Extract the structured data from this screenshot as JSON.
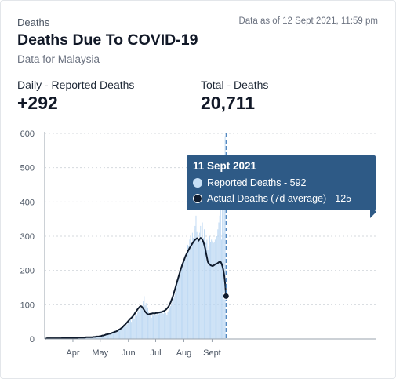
{
  "header": {
    "category": "Deaths",
    "as_of": "Data as of 12 Sept 2021, 11:59 pm",
    "title": "Deaths Due To COVID-19",
    "subtitle": "Data for Malaysia"
  },
  "stats": {
    "daily_label": "Daily - Reported Deaths",
    "daily_value": "+292",
    "total_label": "Total - Deaths",
    "total_value": "20,711"
  },
  "tooltip": {
    "date": "11 Sept 2021",
    "reported": "Reported Deaths - 592",
    "actual": "Actual Deaths (7d average) - 125"
  },
  "colors": {
    "bar": "#b9d6f2",
    "line": "#0f1b2d",
    "marker_line": "#4a82bd",
    "tooltip_bg": "#2e5a86",
    "reported_dot": "#c7dff5",
    "actual_dot": "#0f1b2d"
  },
  "chart_data": {
    "type": "bar",
    "y_ticks": [
      "0",
      "100",
      "200",
      "300",
      "400",
      "500",
      "600"
    ],
    "x_tick_labels": [
      "Apr",
      "May",
      "Jun",
      "Jul",
      "Aug",
      "Sept"
    ],
    "ylim": [
      0,
      600
    ],
    "grid": true,
    "start_date": "2021-03-01",
    "series": [
      {
        "name": "Reported Deaths",
        "type": "bar",
        "values": [
          2,
          1,
          2,
          3,
          1,
          2,
          4,
          2,
          1,
          3,
          2,
          1,
          2,
          3,
          1,
          2,
          3,
          2,
          1,
          4,
          2,
          3,
          1,
          2,
          3,
          2,
          1,
          3,
          2,
          4,
          3,
          2,
          3,
          4,
          2,
          3,
          5,
          3,
          2,
          4,
          3,
          5,
          4,
          3,
          6,
          5,
          4,
          3,
          5,
          4,
          6,
          5,
          4,
          6,
          7,
          5,
          6,
          8,
          7,
          6,
          9,
          8,
          10,
          9,
          12,
          11,
          10,
          14,
          13,
          12,
          16,
          15,
          14,
          18,
          20,
          17,
          22,
          24,
          20,
          26,
          25,
          28,
          30,
          27,
          32,
          35,
          33,
          38,
          40,
          36,
          42,
          48,
          45,
          52,
          55,
          50,
          60,
          65,
          58,
          70,
          75,
          68,
          80,
          85,
          78,
          90,
          95,
          88,
          110,
          125,
          98,
          105,
          88,
          92,
          80,
          75,
          70,
          62,
          72,
          68,
          78,
          74,
          70,
          76,
          80,
          72,
          78,
          82,
          75,
          80,
          74,
          78,
          82,
          76,
          70,
          78,
          84,
          90,
          96,
          102,
          110,
          118,
          125,
          135,
          150,
          165,
          180,
          175,
          190,
          205,
          220,
          210,
          225,
          232,
          245,
          250,
          260,
          275,
          270,
          290,
          300,
          280,
          310,
          295,
          320,
          330,
          360,
          312,
          298,
          290,
          310,
          330,
          285,
          340,
          295,
          320,
          305,
          280,
          290,
          260,
          270,
          300,
          282,
          290,
          285,
          280,
          282,
          290,
          295,
          300,
          320,
          340,
          360,
          380,
          290,
          410,
          310,
          380,
          592
        ],
        "note": ""
      },
      {
        "name": "Actual Deaths (7d average)",
        "type": "line",
        "values": [
          1,
          1,
          2,
          2,
          2,
          2,
          2,
          2,
          2,
          2,
          2,
          2,
          2,
          2,
          2,
          2,
          2,
          2,
          2,
          3,
          3,
          3,
          3,
          3,
          3,
          3,
          3,
          3,
          3,
          3,
          3,
          3,
          3,
          3,
          3,
          3,
          4,
          4,
          4,
          4,
          4,
          4,
          4,
          4,
          4,
          5,
          5,
          5,
          5,
          5,
          5,
          5,
          5,
          6,
          6,
          6,
          7,
          7,
          7,
          7,
          8,
          8,
          9,
          10,
          10,
          11,
          12,
          13,
          13,
          14,
          15,
          15,
          16,
          17,
          18,
          19,
          20,
          21,
          22,
          23,
          25,
          27,
          28,
          30,
          32,
          34,
          37,
          40,
          42,
          45,
          48,
          51,
          54,
          57,
          60,
          62,
          65,
          68,
          72,
          76,
          80,
          84,
          88,
          91,
          94,
          96,
          95,
          92,
          88,
          84,
          80,
          77,
          74,
          72,
          72,
          73,
          74,
          74,
          75,
          75,
          75,
          75,
          76,
          76,
          77,
          77,
          78,
          78,
          79,
          80,
          81,
          82,
          84,
          86,
          89,
          92,
          96,
          101,
          107,
          114,
          121,
          129,
          138,
          147,
          156,
          166,
          175,
          184,
          193,
          202,
          210,
          218,
          225,
          232,
          239,
          245,
          251,
          256,
          261,
          266,
          270,
          275,
          279,
          283,
          287,
          290,
          292,
          294,
          292,
          288,
          292,
          295,
          293,
          289,
          284,
          275,
          264,
          250,
          237,
          225,
          220,
          218,
          215,
          214,
          213,
          214,
          216,
          218,
          219,
          220,
          222,
          224,
          226,
          225,
          220,
          212,
          200,
          185,
          160,
          125
        ]
      }
    ]
  }
}
